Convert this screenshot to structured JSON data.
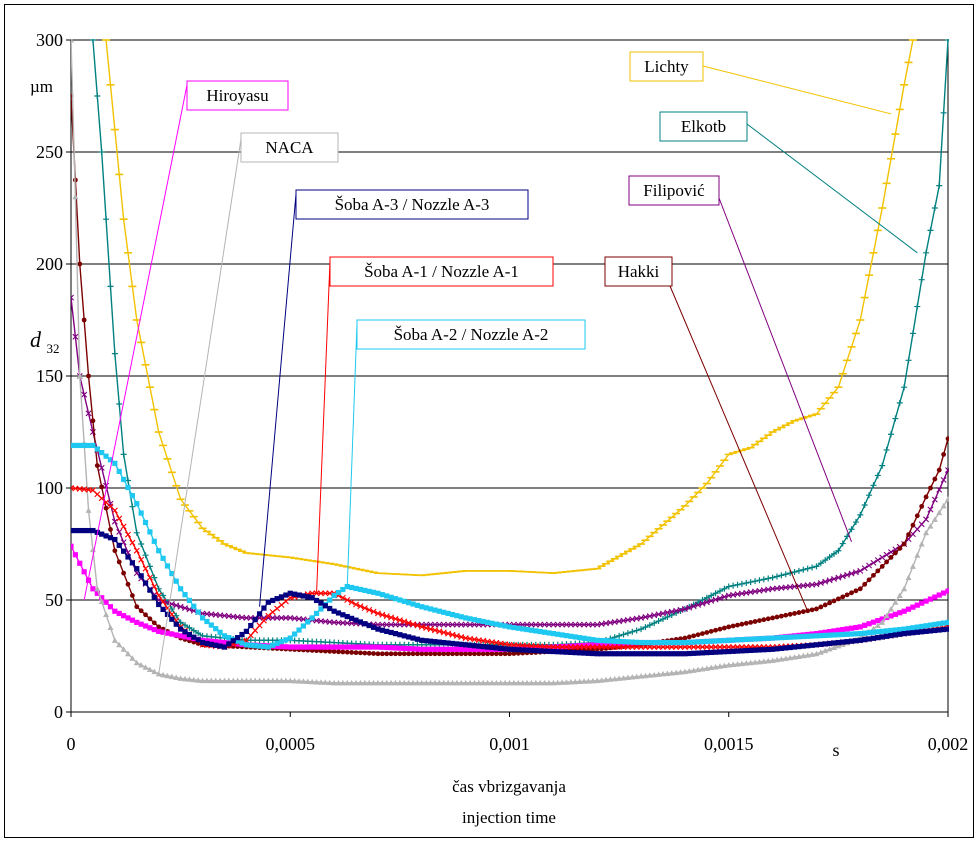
{
  "chart_data": {
    "type": "line",
    "title": "",
    "xlabel": "čas vbrizgavanja",
    "xlabel2": "injection time",
    "x_unit": "s",
    "ylabel_main": "d",
    "ylabel_sub": "32",
    "y_unit": "µm",
    "xlim": [
      0,
      0.002
    ],
    "ylim": [
      0,
      300
    ],
    "x_ticks": [
      {
        "value": 0,
        "label": "0"
      },
      {
        "value": 0.0005,
        "label": "0,0005"
      },
      {
        "value": 0.001,
        "label": "0,001"
      },
      {
        "value": 0.0015,
        "label": "0,0015"
      },
      {
        "value": 0.002,
        "label": "0,002"
      }
    ],
    "y_ticks": [
      {
        "value": 0,
        "label": "0"
      },
      {
        "value": 50,
        "label": "50"
      },
      {
        "value": 100,
        "label": "100"
      },
      {
        "value": 150,
        "label": "150"
      },
      {
        "value": 200,
        "label": "200"
      },
      {
        "value": 250,
        "label": "250"
      },
      {
        "value": 300,
        "label": "300"
      }
    ],
    "grid": "horizontal",
    "legend": "callout labels",
    "series": [
      {
        "name": "Lichty",
        "color": "#f2c200",
        "marker": "dash",
        "x": [
          8e-05,
          0.0001,
          0.00012,
          0.00015,
          0.0002,
          0.00025,
          0.0003,
          0.00035,
          0.0004,
          0.00045,
          0.0005,
          0.0006,
          0.0007,
          0.0008,
          0.0009,
          0.001,
          0.0011,
          0.0012,
          0.0013,
          0.0014,
          0.00145,
          0.0015,
          0.00155,
          0.0016,
          0.00165,
          0.0017,
          0.00175,
          0.0018,
          0.00185,
          0.0019,
          0.00192
        ],
        "y": [
          300,
          260,
          220,
          175,
          125,
          95,
          82,
          75,
          71,
          70,
          69,
          66,
          62,
          61,
          63,
          63,
          62,
          64,
          75,
          92,
          102,
          115,
          118,
          125,
          130,
          133,
          145,
          175,
          225,
          280,
          300
        ]
      },
      {
        "name": "Elkotb",
        "color": "#008080",
        "marker": "plus",
        "x": [
          5e-05,
          7e-05,
          0.0001,
          0.00012,
          0.00015,
          0.0002,
          0.00025,
          0.0003,
          0.00035,
          0.0004,
          0.0005,
          0.0006,
          0.0007,
          0.0008,
          0.0009,
          0.001,
          0.0011,
          0.0012,
          0.0013,
          0.0014,
          0.0015,
          0.0016,
          0.0017,
          0.00175,
          0.0018,
          0.00185,
          0.0019,
          0.00195,
          0.00198,
          0.002
        ],
        "y": [
          300,
          250,
          160,
          115,
          80,
          55,
          40,
          34,
          33,
          32,
          32,
          31,
          30,
          30,
          30,
          30,
          30,
          31,
          37,
          46,
          56,
          60,
          65,
          72,
          88,
          110,
          145,
          205,
          235,
          300
        ]
      },
      {
        "name": "Filipović",
        "color": "#800080",
        "marker": "x",
        "x": [
          0,
          2e-05,
          5e-05,
          0.0001,
          0.00015,
          0.0002,
          0.0003,
          0.0004,
          0.0005,
          0.0006,
          0.0007,
          0.0008,
          0.0009,
          0.001,
          0.0011,
          0.0012,
          0.0013,
          0.0014,
          0.0015,
          0.0016,
          0.0017,
          0.0018,
          0.0019,
          0.00195,
          0.002
        ],
        "y": [
          185,
          150,
          125,
          85,
          62,
          50,
          44,
          42,
          42,
          40,
          39,
          39,
          39,
          39,
          39,
          39,
          42,
          46,
          52,
          55,
          57,
          63,
          75,
          86,
          108
        ]
      },
      {
        "name": "Hakki",
        "color": "#7b0000",
        "marker": "circle",
        "x": [
          0,
          2e-05,
          4e-05,
          6e-05,
          0.0001,
          0.00015,
          0.0002,
          0.00025,
          0.0003,
          0.0004,
          0.0005,
          0.0006,
          0.0007,
          0.0008,
          0.0009,
          0.001,
          0.0011,
          0.0012,
          0.0013,
          0.0014,
          0.0015,
          0.0016,
          0.0017,
          0.0018,
          0.0019,
          0.00195,
          0.00198,
          0.002
        ],
        "y": [
          275,
          200,
          150,
          110,
          72,
          47,
          38,
          33,
          30,
          29,
          28,
          27,
          26,
          26,
          26,
          26,
          27,
          28,
          30,
          33,
          38,
          42,
          46,
          55,
          75,
          96,
          108,
          122
        ]
      },
      {
        "name": "Hiroyasu",
        "color": "#ff00ff",
        "marker": "square",
        "x": [
          0,
          5e-05,
          0.0001,
          0.00015,
          0.0002,
          0.0003,
          0.0004,
          0.0005,
          0.0006,
          0.0007,
          0.0008,
          0.0009,
          0.001,
          0.0011,
          0.0012,
          0.0013,
          0.0014,
          0.0015,
          0.0016,
          0.0017,
          0.0018,
          0.0019,
          0.002
        ],
        "y": [
          74,
          55,
          45,
          40,
          36,
          32,
          30,
          29,
          29,
          29,
          28,
          28,
          28,
          29,
          30,
          31,
          31,
          32,
          33,
          35,
          38,
          45,
          54
        ]
      },
      {
        "name": "NACA",
        "color": "#b4b4b4",
        "marker": "triangle",
        "x": [
          0,
          1e-05,
          2e-05,
          4e-05,
          6e-05,
          0.0001,
          0.00015,
          0.0002,
          0.00025,
          0.0003,
          0.0004,
          0.0005,
          0.0006,
          0.0007,
          0.0008,
          0.0009,
          0.001,
          0.0011,
          0.0012,
          0.0013,
          0.0014,
          0.0015,
          0.0016,
          0.0017,
          0.0018,
          0.00185,
          0.0019,
          0.00195,
          0.002
        ],
        "y": [
          300,
          230,
          150,
          90,
          55,
          32,
          22,
          17,
          15,
          14,
          14,
          14,
          13,
          13,
          13,
          13,
          13,
          13,
          14,
          16,
          18,
          21,
          23,
          26,
          33,
          40,
          55,
          80,
          95
        ]
      },
      {
        "name": "Šoba A-1 / Nozzle A-1",
        "color": "#ff0000",
        "marker": "x",
        "x": [
          0,
          5e-05,
          0.0001,
          0.00015,
          0.0002,
          0.00025,
          0.0003,
          0.00035,
          0.0004,
          0.00045,
          0.0005,
          0.00055,
          0.0006,
          0.00065,
          0.0007,
          0.0008,
          0.0009,
          0.001,
          0.0011,
          0.0012,
          0.0013,
          0.0014,
          0.0015,
          0.0016,
          0.0017,
          0.0018,
          0.0019,
          0.002
        ],
        "y": [
          100,
          99,
          90,
          72,
          52,
          38,
          30,
          29,
          32,
          43,
          51,
          53,
          53,
          48,
          44,
          38,
          33,
          30,
          29,
          29,
          29,
          29,
          29,
          29,
          30,
          32,
          35,
          38
        ]
      },
      {
        "name": "Šoba A-2 / Nozzle A-2",
        "color": "#1ec8f0",
        "marker": "square",
        "x": [
          0,
          5e-05,
          0.0001,
          0.00015,
          0.0002,
          0.00025,
          0.0003,
          0.00035,
          0.0004,
          0.00045,
          0.0005,
          0.00055,
          0.0006,
          0.00063,
          0.0007,
          0.0008,
          0.0009,
          0.001,
          0.0011,
          0.0012,
          0.0013,
          0.0014,
          0.0015,
          0.0016,
          0.0017,
          0.0018,
          0.0019,
          0.002
        ],
        "y": [
          119,
          119,
          111,
          93,
          72,
          55,
          42,
          34,
          30,
          29,
          33,
          42,
          52,
          56,
          53,
          47,
          42,
          38,
          35,
          32,
          31,
          31,
          32,
          33,
          34,
          35,
          37,
          40
        ]
      },
      {
        "name": "Šoba A-3 / Nozzle A-3",
        "color": "#000080",
        "marker": "square",
        "x": [
          0,
          5e-05,
          0.0001,
          0.00015,
          0.0002,
          0.00025,
          0.0003,
          0.00035,
          0.0004,
          0.00045,
          0.0005,
          0.00055,
          0.0006,
          0.0007,
          0.0008,
          0.0009,
          0.001,
          0.0011,
          0.0012,
          0.0013,
          0.0014,
          0.0015,
          0.0016,
          0.0017,
          0.0018,
          0.0019,
          0.002
        ],
        "y": [
          81,
          81,
          77,
          64,
          48,
          37,
          31,
          29,
          36,
          49,
          53,
          51,
          45,
          37,
          32,
          30,
          28,
          27,
          26,
          26,
          26,
          27,
          28,
          30,
          32,
          35,
          37
        ]
      }
    ],
    "annotations": [
      {
        "text": "Lichty",
        "series": 0,
        "target": [
          0.00187,
          267
        ],
        "anchor": "top-right",
        "border": "#f2c200"
      },
      {
        "text": "Elkotb",
        "series": 1,
        "target": [
          0.00193,
          205
        ],
        "anchor": "top-right-2",
        "border": "#008080"
      },
      {
        "text": "Filipović",
        "series": 2,
        "target": [
          0.00178,
          76
        ],
        "anchor": "right-mid",
        "border": "#800080"
      },
      {
        "text": "Hakki",
        "series": 3,
        "target": [
          0.00168,
          45
        ],
        "anchor": "right-low",
        "border": "#7b0000"
      },
      {
        "text": "Hiroyasu",
        "series": 4,
        "target": [
          3e-05,
          50
        ],
        "anchor": "left-top",
        "border": "#ff00ff"
      },
      {
        "text": "NACA",
        "series": 5,
        "target": [
          0.0002,
          17
        ],
        "anchor": "left-mid",
        "border": "#b4b4b4"
      },
      {
        "text": "Šoba A-3 / Nozzle A-3",
        "series": 8,
        "target": [
          0.00043,
          47
        ],
        "anchor": "center-top",
        "border": "#000080"
      },
      {
        "text": "Šoba A-1 / Nozzle A-1",
        "series": 6,
        "target": [
          0.00056,
          53
        ],
        "anchor": "center-mid",
        "border": "#ff0000"
      },
      {
        "text": "Šoba A-2 / Nozzle A-2",
        "series": 7,
        "target": [
          0.00063,
          56
        ],
        "anchor": "center-low",
        "border": "#1ec8f0"
      }
    ]
  }
}
